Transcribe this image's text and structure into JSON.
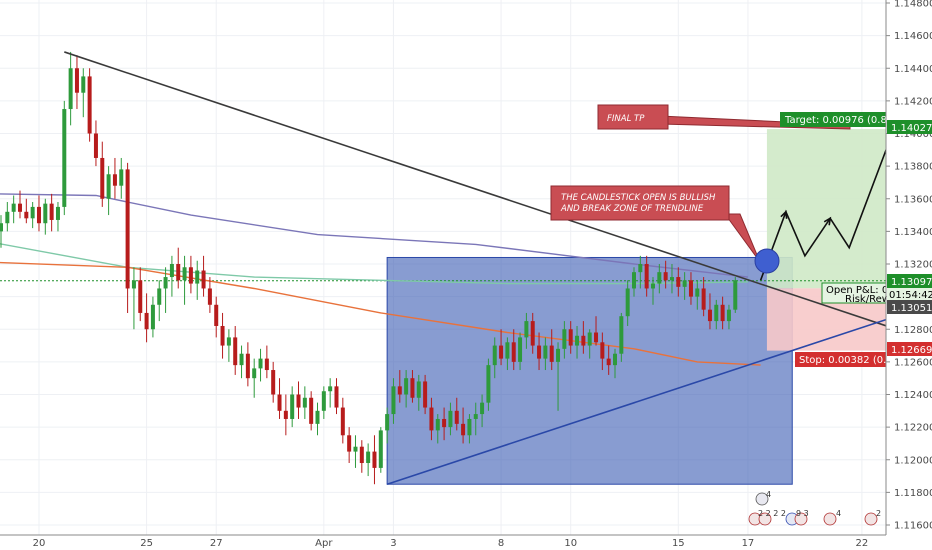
{
  "colors": {
    "bull": "#26a69a",
    "bull_body": "#2e9a3c",
    "bear": "#b71c1c",
    "trendline": "#3a3a3a",
    "triangle_fill": "#3f5fb5",
    "triangle_edge": "#2a48a8",
    "ma_purple": "#7b76b8",
    "ma_teal": "#7fc9a8",
    "ma_orange": "#e8723c",
    "target_fill": "#cfe9c7",
    "stop_fill": "#f7c9c9",
    "target_tag": "#1e8f2a",
    "stop_tag": "#d32f2f",
    "note_fill": "#c94d53",
    "price_tag": "#4a4a4a"
  },
  "annotations": {
    "final_tp": "FINAL TP",
    "candle_note_line1": "THE CANDLESTICK OPEN IS BULLISH",
    "candle_note_line2": "AND BREAK ZONE OF TRENDLINE",
    "target_label": "Target: 0.00976 (0.8",
    "target_price": "1.14027",
    "open_pnl_label": "Open P&L: 0",
    "open_pnl_value": "01:54:42",
    "risk_label": "Risk/Rew",
    "current_price": "1.13097",
    "last_price": "1.13051",
    "stop_label": "Stop: 0.00382 (0.",
    "stop_price": "1.12669"
  },
  "badges": {
    "top": "4",
    "bottom_left": "2 2 2 2",
    "bottom_mid": "9 3",
    "bottom_right1": "4",
    "bottom_right2": "2"
  },
  "chart_data": {
    "type": "candlestick",
    "title": "",
    "xlabel": "",
    "ylabel": "",
    "ylim": [
      1.116,
      1.148
    ],
    "y_ticks": [
      "1.11600",
      "1.11800",
      "1.12000",
      "1.12200",
      "1.12400",
      "1.12600",
      "1.12800",
      "1.13000",
      "1.13200",
      "1.13400",
      "1.13600",
      "1.13800",
      "1.14000",
      "1.14200",
      "1.14400",
      "1.14600",
      "1.14800"
    ],
    "x_ticks": [
      {
        "label": "20",
        "bar": 6
      },
      {
        "label": "25",
        "bar": 23
      },
      {
        "label": "27",
        "bar": 34
      },
      {
        "label": "Apr",
        "bar": 51
      },
      {
        "label": "3",
        "bar": 62
      },
      {
        "label": "8",
        "bar": 79
      },
      {
        "label": "10",
        "bar": 90
      },
      {
        "label": "15",
        "bar": 107
      },
      {
        "label": "17",
        "bar": 118
      },
      {
        "label": "22",
        "bar": 136
      }
    ],
    "ohlc": [
      [
        1.134,
        1.135,
        1.133,
        1.1345
      ],
      [
        1.1345,
        1.1358,
        1.134,
        1.1352
      ],
      [
        1.1352,
        1.1362,
        1.1345,
        1.1357
      ],
      [
        1.1357,
        1.1365,
        1.1348,
        1.1352
      ],
      [
        1.1352,
        1.136,
        1.1345,
        1.1348
      ],
      [
        1.1348,
        1.1358,
        1.1342,
        1.1355
      ],
      [
        1.1355,
        1.1362,
        1.134,
        1.1345
      ],
      [
        1.1345,
        1.136,
        1.1338,
        1.1357
      ],
      [
        1.1357,
        1.1363,
        1.134,
        1.1347
      ],
      [
        1.1347,
        1.1358,
        1.134,
        1.1355
      ],
      [
        1.1355,
        1.142,
        1.135,
        1.1415
      ],
      [
        1.1415,
        1.145,
        1.1405,
        1.144
      ],
      [
        1.144,
        1.1448,
        1.1415,
        1.1425
      ],
      [
        1.1425,
        1.144,
        1.141,
        1.1435
      ],
      [
        1.1435,
        1.144,
        1.1395,
        1.14
      ],
      [
        1.14,
        1.1408,
        1.138,
        1.1385
      ],
      [
        1.1385,
        1.1395,
        1.1355,
        1.136
      ],
      [
        1.136,
        1.138,
        1.135,
        1.1375
      ],
      [
        1.1375,
        1.1385,
        1.136,
        1.1368
      ],
      [
        1.1368,
        1.1385,
        1.136,
        1.1378
      ],
      [
        1.1378,
        1.1382,
        1.129,
        1.1305
      ],
      [
        1.1305,
        1.1318,
        1.128,
        1.131
      ],
      [
        1.131,
        1.1318,
        1.1285,
        1.129
      ],
      [
        1.129,
        1.1302,
        1.1272,
        1.128
      ],
      [
        1.128,
        1.13,
        1.1275,
        1.1295
      ],
      [
        1.1295,
        1.131,
        1.1285,
        1.1305
      ],
      [
        1.1305,
        1.1318,
        1.129,
        1.1312
      ],
      [
        1.1312,
        1.1325,
        1.13,
        1.132
      ],
      [
        1.132,
        1.133,
        1.1305,
        1.131
      ],
      [
        1.131,
        1.1325,
        1.1295,
        1.1318
      ],
      [
        1.1318,
        1.1325,
        1.1302,
        1.1308
      ],
      [
        1.1308,
        1.1322,
        1.1298,
        1.1316
      ],
      [
        1.1316,
        1.1325,
        1.13,
        1.1305
      ],
      [
        1.1305,
        1.1312,
        1.129,
        1.1295
      ],
      [
        1.1295,
        1.13,
        1.1275,
        1.1282
      ],
      [
        1.1282,
        1.129,
        1.1262,
        1.127
      ],
      [
        1.127,
        1.128,
        1.126,
        1.1275
      ],
      [
        1.1275,
        1.1282,
        1.1252,
        1.1258
      ],
      [
        1.1258,
        1.127,
        1.125,
        1.1265
      ],
      [
        1.1265,
        1.1272,
        1.1245,
        1.125
      ],
      [
        1.125,
        1.1262,
        1.1238,
        1.1256
      ],
      [
        1.1256,
        1.1268,
        1.1248,
        1.1262
      ],
      [
        1.1262,
        1.127,
        1.125,
        1.1255
      ],
      [
        1.1255,
        1.126,
        1.1235,
        1.124
      ],
      [
        1.124,
        1.125,
        1.1225,
        1.123
      ],
      [
        1.123,
        1.124,
        1.1215,
        1.1225
      ],
      [
        1.1225,
        1.1245,
        1.122,
        1.124
      ],
      [
        1.124,
        1.1248,
        1.1225,
        1.1232
      ],
      [
        1.1232,
        1.1245,
        1.1225,
        1.1238
      ],
      [
        1.1238,
        1.1242,
        1.1218,
        1.1222
      ],
      [
        1.1222,
        1.1235,
        1.1215,
        1.123
      ],
      [
        1.123,
        1.1245,
        1.1225,
        1.1242
      ],
      [
        1.1242,
        1.125,
        1.1232,
        1.1245
      ],
      [
        1.1245,
        1.125,
        1.1228,
        1.1232
      ],
      [
        1.1232,
        1.1238,
        1.121,
        1.1215
      ],
      [
        1.1215,
        1.122,
        1.1198,
        1.1205
      ],
      [
        1.1205,
        1.1215,
        1.1195,
        1.1208
      ],
      [
        1.1208,
        1.1212,
        1.1192,
        1.1198
      ],
      [
        1.1198,
        1.121,
        1.119,
        1.1205
      ],
      [
        1.1205,
        1.1215,
        1.1185,
        1.1195
      ],
      [
        1.1195,
        1.122,
        1.1192,
        1.1218
      ],
      [
        1.1218,
        1.1232,
        1.121,
        1.1228
      ],
      [
        1.1228,
        1.125,
        1.1222,
        1.1245
      ],
      [
        1.1245,
        1.1255,
        1.1235,
        1.124
      ],
      [
        1.124,
        1.1255,
        1.1232,
        1.125
      ],
      [
        1.125,
        1.1255,
        1.1235,
        1.1238
      ],
      [
        1.1238,
        1.1252,
        1.123,
        1.1248
      ],
      [
        1.1248,
        1.1252,
        1.1228,
        1.1232
      ],
      [
        1.1232,
        1.1238,
        1.1212,
        1.1218
      ],
      [
        1.1218,
        1.1228,
        1.121,
        1.1225
      ],
      [
        1.1225,
        1.1232,
        1.1212,
        1.122
      ],
      [
        1.122,
        1.1235,
        1.1215,
        1.123
      ],
      [
        1.123,
        1.1238,
        1.1218,
        1.1222
      ],
      [
        1.1222,
        1.1232,
        1.121,
        1.1215
      ],
      [
        1.1215,
        1.1228,
        1.121,
        1.1225
      ],
      [
        1.1225,
        1.1235,
        1.1215,
        1.1228
      ],
      [
        1.1228,
        1.124,
        1.122,
        1.1235
      ],
      [
        1.1235,
        1.1262,
        1.123,
        1.1258
      ],
      [
        1.1258,
        1.1275,
        1.125,
        1.127
      ],
      [
        1.127,
        1.128,
        1.1258,
        1.1262
      ],
      [
        1.1262,
        1.1275,
        1.1255,
        1.1272
      ],
      [
        1.1272,
        1.128,
        1.1255,
        1.126
      ],
      [
        1.126,
        1.1278,
        1.1255,
        1.1275
      ],
      [
        1.1275,
        1.129,
        1.1268,
        1.1285
      ],
      [
        1.1285,
        1.129,
        1.1265,
        1.127
      ],
      [
        1.127,
        1.1278,
        1.1255,
        1.1262
      ],
      [
        1.1262,
        1.1275,
        1.1255,
        1.127
      ],
      [
        1.127,
        1.128,
        1.1255,
        1.126
      ],
      [
        1.126,
        1.1272,
        1.123,
        1.1268
      ],
      [
        1.1268,
        1.1285,
        1.1262,
        1.128
      ],
      [
        1.128,
        1.1285,
        1.1265,
        1.127
      ],
      [
        1.127,
        1.1282,
        1.1262,
        1.1276
      ],
      [
        1.1276,
        1.1285,
        1.1265,
        1.127
      ],
      [
        1.127,
        1.128,
        1.1262,
        1.1278
      ],
      [
        1.1278,
        1.1288,
        1.127,
        1.1272
      ],
      [
        1.1272,
        1.1278,
        1.1255,
        1.1262
      ],
      [
        1.1262,
        1.127,
        1.1252,
        1.1258
      ],
      [
        1.1258,
        1.1268,
        1.125,
        1.1265
      ],
      [
        1.1265,
        1.129,
        1.126,
        1.1288
      ],
      [
        1.1288,
        1.131,
        1.1282,
        1.1305
      ],
      [
        1.1305,
        1.1318,
        1.13,
        1.1315
      ],
      [
        1.1315,
        1.1325,
        1.1305,
        1.132
      ],
      [
        1.132,
        1.1325,
        1.13,
        1.1305
      ],
      [
        1.1305,
        1.1312,
        1.1295,
        1.1308
      ],
      [
        1.1308,
        1.132,
        1.1302,
        1.1315
      ],
      [
        1.1315,
        1.1322,
        1.1305,
        1.131
      ],
      [
        1.131,
        1.132,
        1.1302,
        1.1312
      ],
      [
        1.1312,
        1.1318,
        1.13,
        1.1306
      ],
      [
        1.1306,
        1.1315,
        1.1298,
        1.131
      ],
      [
        1.131,
        1.1315,
        1.1295,
        1.13
      ],
      [
        1.13,
        1.131,
        1.1292,
        1.1305
      ],
      [
        1.1305,
        1.1312,
        1.1288,
        1.1292
      ],
      [
        1.1292,
        1.1302,
        1.128,
        1.1285
      ],
      [
        1.1285,
        1.1298,
        1.128,
        1.1295
      ],
      [
        1.1295,
        1.13,
        1.128,
        1.1285
      ],
      [
        1.1285,
        1.1295,
        1.128,
        1.1292
      ],
      [
        1.1292,
        1.1312,
        1.129,
        1.131
      ]
    ],
    "overlays": [
      {
        "kind": "trendline",
        "from": [
          10,
          1.145
        ],
        "to": [
          143,
          1.1278
        ]
      },
      {
        "kind": "trendline",
        "from": [
          61,
          1.1185
        ],
        "to": [
          143,
          1.129
        ]
      },
      {
        "kind": "moving_average",
        "color": "ma_purple",
        "points": [
          [
            -1,
            1.1363
          ],
          [
            15,
            1.1362
          ],
          [
            30,
            1.135
          ],
          [
            50,
            1.1338
          ],
          [
            75,
            1.1332
          ],
          [
            100,
            1.132
          ],
          [
            118,
            1.1312
          ]
        ]
      },
      {
        "kind": "moving_average",
        "color": "ma_teal",
        "points": [
          [
            -1,
            1.1333
          ],
          [
            20,
            1.1318
          ],
          [
            40,
            1.1312
          ],
          [
            60,
            1.131
          ],
          [
            80,
            1.1308
          ],
          [
            100,
            1.1308
          ],
          [
            118,
            1.1309
          ]
        ]
      },
      {
        "kind": "moving_average",
        "color": "ma_orange",
        "points": [
          [
            -1,
            1.1321
          ],
          [
            20,
            1.1318
          ],
          [
            40,
            1.1305
          ],
          [
            60,
            1.129
          ],
          [
            80,
            1.1278
          ],
          [
            100,
            1.1268
          ],
          [
            110,
            1.126
          ],
          [
            120,
            1.1258
          ]
        ]
      }
    ],
    "triangle_zone": {
      "from_bar": 61,
      "to_bar": 125,
      "top": 1.1324,
      "bottom": 1.1185
    },
    "position": {
      "entry": 1.13051,
      "target": 1.14027,
      "stop": 1.12669,
      "from_bar": 121,
      "to_bar": 143
    }
  }
}
